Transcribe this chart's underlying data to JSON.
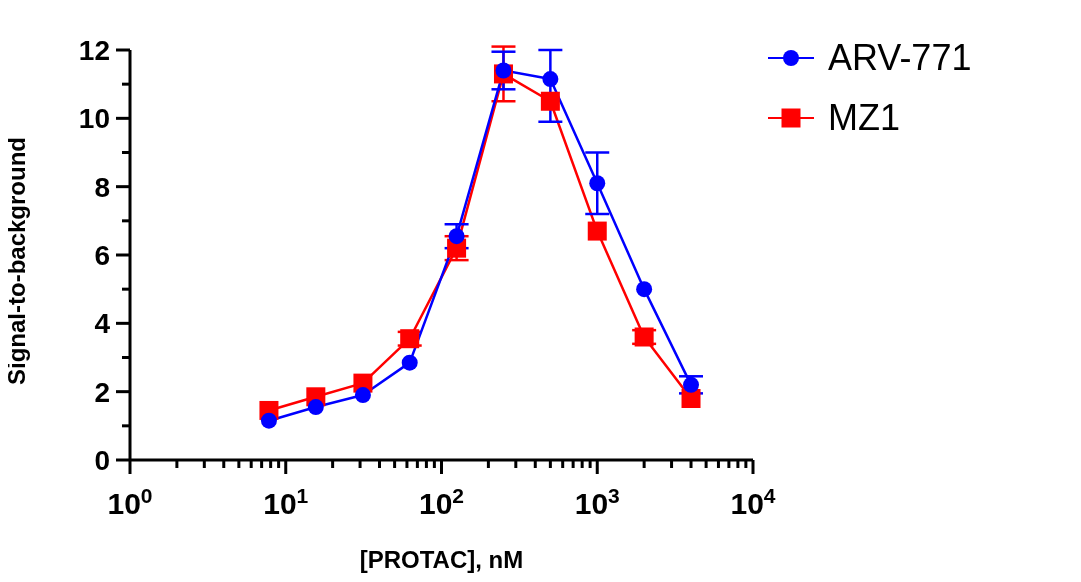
{
  "chart_data": {
    "type": "line",
    "xlabel": "[PROTAC], nM",
    "ylabel": "Signal-to-background",
    "x": [
      7.8,
      15.6,
      31.3,
      62.5,
      125,
      250,
      500,
      1000,
      2000,
      4000
    ],
    "series": [
      {
        "name": "ARV-771",
        "color": "#0000ff",
        "marker": "circle",
        "values": [
          1.15,
          1.55,
          1.9,
          2.85,
          6.55,
          11.4,
          11.15,
          8.1,
          5.0,
          2.2
        ],
        "errors": [
          null,
          null,
          null,
          null,
          0.35,
          0.55,
          [
            9.9,
            12
          ],
          0.9,
          null,
          0.25
        ]
      },
      {
        "name": "MZ1",
        "color": "#ff0000",
        "marker": "square",
        "values": [
          1.45,
          1.85,
          2.25,
          3.55,
          6.2,
          11.3,
          10.5,
          6.7,
          3.6,
          1.8
        ],
        "errors": [
          null,
          null,
          null,
          0.2,
          0.35,
          0.8,
          null,
          null,
          0.2,
          null
        ]
      }
    ],
    "log": "x",
    "xlim": [
      1,
      10000
    ],
    "xticks": [
      {
        "value": 1,
        "label": "10$^{0}$"
      },
      {
        "value": 2,
        "label": null
      },
      {
        "value": 3,
        "label": null
      },
      {
        "value": 4,
        "label": null
      },
      {
        "value": 5,
        "label": null
      },
      {
        "value": 6,
        "label": null
      },
      {
        "value": 7,
        "label": null
      },
      {
        "value": 8,
        "label": null
      },
      {
        "value": 9,
        "label": null
      },
      {
        "value": 10,
        "label": "10$^{1}$"
      },
      {
        "value": 20,
        "label": null
      },
      {
        "value": 30,
        "label": null
      },
      {
        "value": 40,
        "label": null
      },
      {
        "value": 50,
        "label": null
      },
      {
        "value": 60,
        "label": null
      },
      {
        "value": 70,
        "label": null
      },
      {
        "value": 80,
        "label": null
      },
      {
        "value": 90,
        "label": null
      },
      {
        "value": 100,
        "label": "10$^{2}$"
      },
      {
        "value": 200,
        "label": null
      },
      {
        "value": 300,
        "label": null
      },
      {
        "value": 400,
        "label": null
      },
      {
        "value": 500,
        "label": null
      },
      {
        "value": 600,
        "label": null
      },
      {
        "value": 700,
        "label": null
      },
      {
        "value": 800,
        "label": null
      },
      {
        "value": 900,
        "label": null
      },
      {
        "value": 1000,
        "label": "10$^{3}$"
      },
      {
        "value": 2000,
        "label": null
      },
      {
        "value": 3000,
        "label": null
      },
      {
        "value": 4000,
        "label": null
      },
      {
        "value": 5000,
        "label": null
      },
      {
        "value": 6000,
        "label": null
      },
      {
        "value": 7000,
        "label": null
      },
      {
        "value": 8000,
        "label": null
      },
      {
        "value": 9000,
        "label": null
      },
      {
        "value": 10000,
        "label": "10$^{4}$"
      }
    ],
    "ylim": [
      0,
      12
    ],
    "yticks": [
      0,
      {
        "value": 1,
        "label": null
      },
      2,
      {
        "value": 3,
        "label": null
      },
      4,
      {
        "value": 5,
        "label": null
      },
      6,
      {
        "value": 7,
        "label": null
      },
      8,
      {
        "value": 9,
        "label": null
      },
      10,
      {
        "value": 11,
        "label": null
      },
      12
    ],
    "legend": "top right",
    "grid": false,
    "line_style": "solid"
  }
}
